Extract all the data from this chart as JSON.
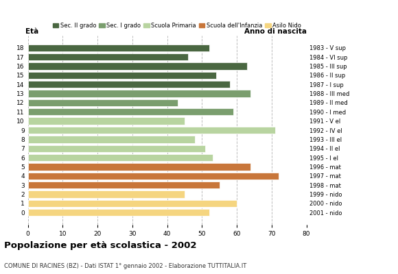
{
  "ages": [
    18,
    17,
    16,
    15,
    14,
    13,
    12,
    11,
    10,
    9,
    8,
    7,
    6,
    5,
    4,
    3,
    2,
    1,
    0
  ],
  "values": [
    52,
    46,
    63,
    54,
    58,
    64,
    43,
    59,
    45,
    71,
    48,
    51,
    53,
    64,
    72,
    55,
    45,
    60,
    52
  ],
  "right_labels": [
    "1983 - V sup",
    "1984 - VI sup",
    "1985 - III sup",
    "1986 - II sup",
    "1987 - I sup",
    "1988 - III med",
    "1989 - II med",
    "1990 - I med",
    "1991 - V el",
    "1992 - IV el",
    "1993 - III el",
    "1994 - II el",
    "1995 - I el",
    "1996 - mat",
    "1997 - mat",
    "1998 - mat",
    "1999 - nido",
    "2000 - nido",
    "2001 - nido"
  ],
  "bar_colors": [
    "#4a6741",
    "#4a6741",
    "#4a6741",
    "#4a6741",
    "#4a6741",
    "#7a9e6e",
    "#7a9e6e",
    "#7a9e6e",
    "#b8d4a0",
    "#b8d4a0",
    "#b8d4a0",
    "#b8d4a0",
    "#b8d4a0",
    "#c8763a",
    "#c8763a",
    "#c8763a",
    "#f5d580",
    "#f5d580",
    "#f5d580"
  ],
  "xlim": [
    0,
    80
  ],
  "xticks": [
    0,
    10,
    20,
    30,
    40,
    50,
    60,
    70,
    80
  ],
  "title": "Popolazione per età scolastica - 2002",
  "subtitle": "COMUNE DI RACINES (BZ) - Dati ISTAT 1° gennaio 2002 - Elaborazione TUTTITALIA.IT",
  "ylabel_left": "Età",
  "ylabel_right": "Anno di nascita",
  "legend_labels": [
    "Sec. II grado",
    "Sec. I grado",
    "Scuola Primaria",
    "Scuola dell'Infanzia",
    "Asilo Nido"
  ],
  "legend_colors": [
    "#4a6741",
    "#7a9e6e",
    "#b8d4a0",
    "#c8763a",
    "#f5d580"
  ],
  "background_color": "#ffffff",
  "grid_color": "#bbbbbb"
}
